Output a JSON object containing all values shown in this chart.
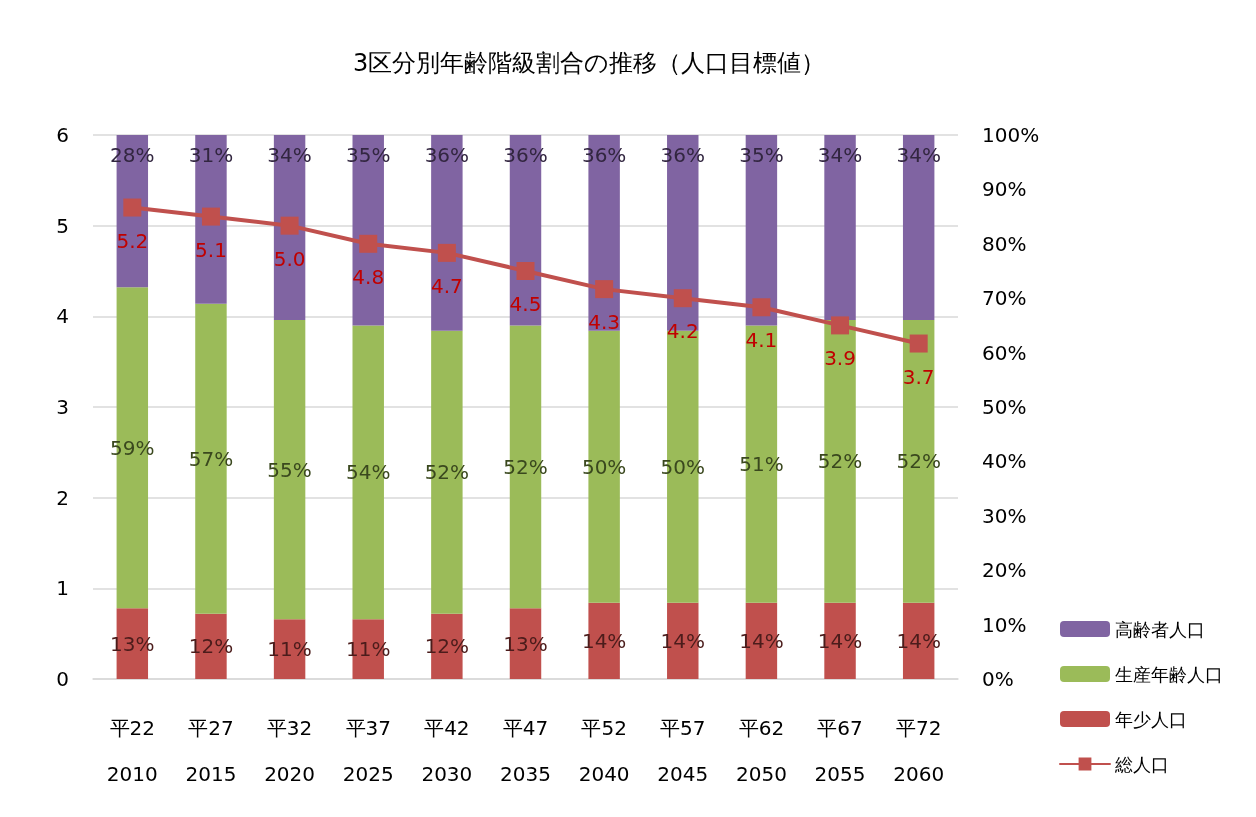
{
  "chart_data": {
    "type": "bar",
    "title": "3区分別年齢階級割合の推移（人口目標値）",
    "categories": [
      "平22\n2010",
      "平27\n2015",
      "平32\n2020",
      "平37\n2025",
      "平42\n2030",
      "平47\n2035",
      "平52\n2040",
      "平57\n2045",
      "平62\n2050",
      "平67\n2055",
      "平72\n2060"
    ],
    "stacked": true,
    "grid": "y",
    "legend": "bottom right",
    "series": [
      {
        "name": "年少人口",
        "color": "#c0504d",
        "axis": "y2",
        "values": [
          13,
          12,
          11,
          11,
          12,
          13,
          14,
          14,
          14,
          14,
          14
        ],
        "value_labels": [
          "13%",
          "12%",
          "11%",
          "11%",
          "12%",
          "13%",
          "14%",
          "14%",
          "14%",
          "14%",
          "14%"
        ]
      },
      {
        "name": "生産年齢人口",
        "color": "#9bbb59",
        "axis": "y2",
        "values": [
          59,
          57,
          55,
          54,
          52,
          52,
          50,
          50,
          51,
          52,
          52
        ],
        "value_labels": [
          "59%",
          "57%",
          "55%",
          "54%",
          "52%",
          "52%",
          "50%",
          "50%",
          "51%",
          "52%",
          "52%"
        ]
      },
      {
        "name": "高齢者人口",
        "color": "#8064a2",
        "axis": "y2",
        "values": [
          28,
          31,
          34,
          35,
          36,
          36,
          36,
          36,
          35,
          34,
          34
        ],
        "value_labels": [
          "28%",
          "31%",
          "34%",
          "35%",
          "36%",
          "36%",
          "36%",
          "36%",
          "35%",
          "34%",
          "34%"
        ]
      },
      {
        "name": "総人口",
        "type": "line",
        "color": "#c0504d",
        "marker": "square",
        "values": [
          5.2,
          5.1,
          5.0,
          4.8,
          4.7,
          4.5,
          4.3,
          4.2,
          4.1,
          3.9,
          3.7
        ],
        "value_labels": [
          "5.2",
          "5.1",
          "5.0",
          "4.8",
          "4.7",
          "4.5",
          "4.3",
          "4.2",
          "4.1",
          "3.9",
          "3.7"
        ]
      }
    ],
    "ylim": [
      0,
      6
    ],
    "yticks": [
      0,
      1,
      2,
      3,
      4,
      5,
      6
    ],
    "y2lim": [
      0,
      100
    ],
    "y2ticks": [
      {
        "value": 0,
        "label": "0%"
      },
      {
        "value": 10,
        "label": "10%"
      },
      {
        "value": 20,
        "label": "20%"
      },
      {
        "value": 30,
        "label": "30%"
      },
      {
        "value": 40,
        "label": "40%"
      },
      {
        "value": 50,
        "label": "50%"
      },
      {
        "value": 60,
        "label": "60%"
      },
      {
        "value": 70,
        "label": "70%"
      },
      {
        "value": 80,
        "label": "80%"
      },
      {
        "value": 90,
        "label": "90%"
      },
      {
        "value": 100,
        "label": "100%"
      }
    ]
  }
}
